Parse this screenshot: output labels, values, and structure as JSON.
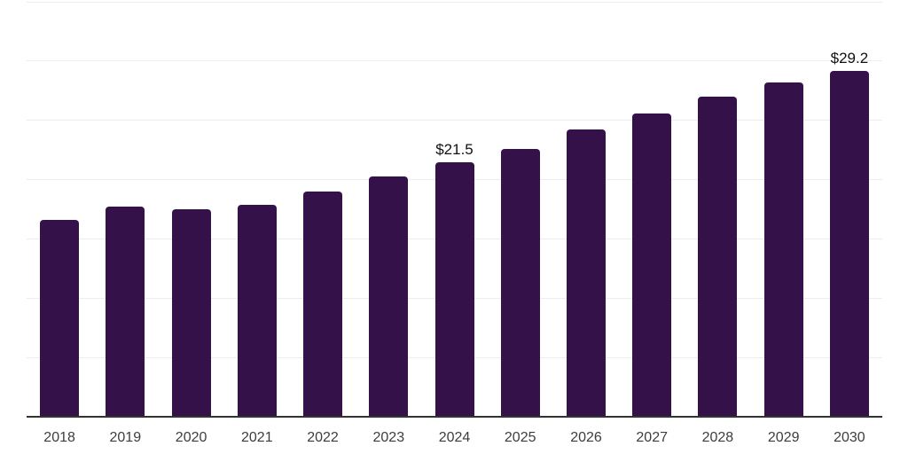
{
  "chart_data": {
    "type": "bar",
    "title": "",
    "xlabel": "",
    "ylabel": "",
    "categories": [
      "2018",
      "2019",
      "2020",
      "2021",
      "2022",
      "2023",
      "2024",
      "2025",
      "2026",
      "2027",
      "2028",
      "2029",
      "2030"
    ],
    "values": [
      16.6,
      17.7,
      17.5,
      17.9,
      19.0,
      20.3,
      21.5,
      22.6,
      24.2,
      25.6,
      27.0,
      28.2,
      29.2
    ],
    "data_labels": {
      "2024": "$21.5",
      "2030": "$29.2"
    },
    "ylim": [
      0,
      35
    ],
    "gridline_step": 5,
    "grid": true,
    "legend": false,
    "bar_color": "#351149",
    "gridline_color": "#ededed",
    "axis_color": "#333333",
    "tick_color": "#3d3d3d",
    "data_label_color": "#111111",
    "background": "#ffffff"
  }
}
